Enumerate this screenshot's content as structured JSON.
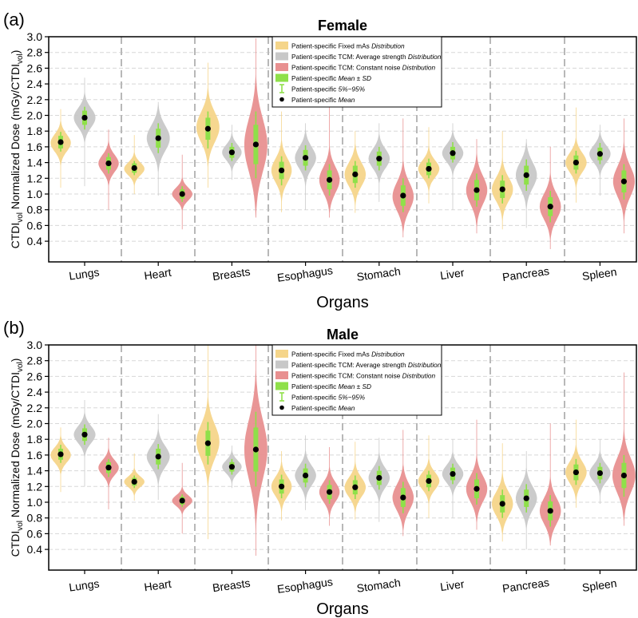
{
  "chart_data": [
    {
      "type": "violin",
      "panel_label": "(a)",
      "title": "Female",
      "xlabel": "Organs",
      "ylabel": {
        "prefix": "CTDI",
        "sub": "vol",
        "mid": " Normalized Dose (mGy/CTDI",
        "sub2": "vol",
        "suffix": ")"
      },
      "ylim": [
        0.3,
        3.0
      ],
      "yticks": [
        "0.4",
        "0.6",
        "0.8",
        "1.0",
        "1.2",
        "1.4",
        "1.6",
        "1.8",
        "2.0",
        "2.2",
        "2.4",
        "2.6",
        "2.8",
        "3.0"
      ],
      "grid": "horizontal-dashed",
      "legend_position": "top-right",
      "categories": [
        "Lungs",
        "Heart",
        "Breasts",
        "Esophagus",
        "Stomach",
        "Liver",
        "Pancreas",
        "Spleen"
      ],
      "series": [
        {
          "name": "Patient-specific Fixed mAs Distribution",
          "color": "#f5d58a",
          "values": [
            {
              "mean": 1.66,
              "sd": 0.08,
              "p5": 1.54,
              "p95": 1.79,
              "min": 1.08,
              "max": 2.08,
              "mode": 1.65,
              "width": 0.75
            },
            {
              "mean": 1.33,
              "sd": 0.06,
              "p5": 1.24,
              "p95": 1.42,
              "min": 1.0,
              "max": 1.75,
              "mode": 1.32,
              "width": 0.75
            },
            {
              "mean": 1.83,
              "sd": 0.14,
              "p5": 1.58,
              "p95": 2.05,
              "min": 1.08,
              "max": 2.67,
              "mode": 1.85,
              "width": 0.85
            },
            {
              "mean": 1.3,
              "sd": 0.11,
              "p5": 1.11,
              "p95": 1.48,
              "min": 0.77,
              "max": 2.05,
              "mode": 1.3,
              "width": 0.75
            },
            {
              "mean": 1.25,
              "sd": 0.11,
              "p5": 1.08,
              "p95": 1.42,
              "min": 0.76,
              "max": 1.8,
              "mode": 1.25,
              "width": 0.78
            },
            {
              "mean": 1.32,
              "sd": 0.08,
              "p5": 1.2,
              "p95": 1.45,
              "min": 0.88,
              "max": 1.85,
              "mode": 1.32,
              "width": 0.78
            },
            {
              "mean": 1.06,
              "sd": 0.11,
              "p5": 0.88,
              "p95": 1.24,
              "min": 0.55,
              "max": 1.8,
              "mode": 1.06,
              "width": 0.78
            },
            {
              "mean": 1.4,
              "sd": 0.09,
              "p5": 1.26,
              "p95": 1.55,
              "min": 0.89,
              "max": 2.1,
              "mode": 1.4,
              "width": 0.78
            }
          ]
        },
        {
          "name": "Patient-specific TCM: Average strength Distribution",
          "color": "#c8c8c8",
          "values": [
            {
              "mean": 1.97,
              "sd": 0.09,
              "p5": 1.82,
              "p95": 2.11,
              "min": 1.1,
              "max": 2.48,
              "mode": 1.97,
              "width": 0.8
            },
            {
              "mean": 1.71,
              "sd": 0.12,
              "p5": 1.52,
              "p95": 1.9,
              "min": 0.98,
              "max": 2.17,
              "mode": 1.71,
              "width": 0.85
            },
            {
              "mean": 1.53,
              "sd": 0.07,
              "p5": 1.42,
              "p95": 1.65,
              "min": 1.18,
              "max": 1.88,
              "mode": 1.53,
              "width": 0.72
            },
            {
              "mean": 1.46,
              "sd": 0.1,
              "p5": 1.3,
              "p95": 1.62,
              "min": 0.8,
              "max": 1.9,
              "mode": 1.46,
              "width": 0.78
            },
            {
              "mean": 1.45,
              "sd": 0.09,
              "p5": 1.3,
              "p95": 1.6,
              "min": 0.9,
              "max": 1.9,
              "mode": 1.45,
              "width": 0.78
            },
            {
              "mean": 1.52,
              "sd": 0.08,
              "p5": 1.4,
              "p95": 1.66,
              "min": 0.8,
              "max": 1.9,
              "mode": 1.52,
              "width": 0.78
            },
            {
              "mean": 1.24,
              "sd": 0.12,
              "p5": 1.04,
              "p95": 1.44,
              "min": 0.57,
              "max": 1.7,
              "mode": 1.24,
              "width": 0.78
            },
            {
              "mean": 1.51,
              "sd": 0.08,
              "p5": 1.38,
              "p95": 1.65,
              "min": 0.98,
              "max": 1.88,
              "mode": 1.51,
              "width": 0.78
            }
          ]
        },
        {
          "name": "Patient-specific TCM: Constant noise Distribution",
          "color": "#e89090",
          "values": [
            {
              "mean": 1.39,
              "sd": 0.08,
              "p5": 1.26,
              "p95": 1.52,
              "min": 0.8,
              "max": 1.82,
              "mode": 1.39,
              "width": 0.75
            },
            {
              "mean": 1.0,
              "sd": 0.06,
              "p5": 0.9,
              "p95": 1.1,
              "min": 0.55,
              "max": 1.5,
              "mode": 1.0,
              "width": 0.75
            },
            {
              "mean": 1.63,
              "sd": 0.25,
              "p5": 1.2,
              "p95": 2.05,
              "min": 0.7,
              "max": 2.98,
              "mode": 1.62,
              "width": 0.85
            },
            {
              "mean": 1.18,
              "sd": 0.12,
              "p5": 0.98,
              "p95": 1.38,
              "min": 0.7,
              "max": 2.3,
              "mode": 1.18,
              "width": 0.75
            },
            {
              "mean": 0.98,
              "sd": 0.13,
              "p5": 0.77,
              "p95": 1.2,
              "min": 0.45,
              "max": 1.96,
              "mode": 0.97,
              "width": 0.78
            },
            {
              "mean": 1.05,
              "sd": 0.13,
              "p5": 0.84,
              "p95": 1.26,
              "min": 0.5,
              "max": 1.7,
              "mode": 1.05,
              "width": 0.78
            },
            {
              "mean": 0.84,
              "sd": 0.12,
              "p5": 0.64,
              "p95": 1.04,
              "min": 0.3,
              "max": 1.6,
              "mode": 0.84,
              "width": 0.78
            },
            {
              "mean": 1.16,
              "sd": 0.14,
              "p5": 0.93,
              "p95": 1.38,
              "min": 0.5,
              "max": 1.96,
              "mode": 1.16,
              "width": 0.8
            }
          ]
        }
      ]
    },
    {
      "type": "violin",
      "panel_label": "(b)",
      "title": "Male",
      "xlabel": "Organs",
      "ylabel": {
        "prefix": "CTDI",
        "sub": "vol",
        "mid": " Normalized Dose (mGy/CTDI",
        "sub2": "vol",
        "suffix": ")"
      },
      "ylim": [
        0.3,
        3.0
      ],
      "yticks": [
        "0.4",
        "0.6",
        "0.8",
        "1.0",
        "1.2",
        "1.4",
        "1.6",
        "1.8",
        "2.0",
        "2.2",
        "2.4",
        "2.6",
        "2.8",
        "3.0"
      ],
      "grid": "horizontal-dashed",
      "legend_position": "top-right",
      "categories": [
        "Lungs",
        "Heart",
        "Breasts",
        "Esophagus",
        "Stomach",
        "Liver",
        "Pancreas",
        "Spleen"
      ],
      "series": [
        {
          "name": "Patient-specific Fixed mAs Distribution",
          "color": "#f5d58a",
          "values": [
            {
              "mean": 1.61,
              "sd": 0.07,
              "p5": 1.5,
              "p95": 1.73,
              "min": 1.13,
              "max": 1.95,
              "mode": 1.6,
              "width": 0.75
            },
            {
              "mean": 1.26,
              "sd": 0.05,
              "p5": 1.18,
              "p95": 1.34,
              "min": 1.02,
              "max": 1.62,
              "mode": 1.26,
              "width": 0.75
            },
            {
              "mean": 1.75,
              "sd": 0.16,
              "p5": 1.48,
              "p95": 2.02,
              "min": 0.53,
              "max": 3.0,
              "mode": 1.77,
              "width": 0.85
            },
            {
              "mean": 1.2,
              "sd": 0.09,
              "p5": 1.05,
              "p95": 1.35,
              "min": 0.77,
              "max": 1.65,
              "mode": 1.2,
              "width": 0.75
            },
            {
              "mean": 1.19,
              "sd": 0.09,
              "p5": 1.04,
              "p95": 1.34,
              "min": 0.78,
              "max": 1.77,
              "mode": 1.19,
              "width": 0.78
            },
            {
              "mean": 1.27,
              "sd": 0.08,
              "p5": 1.14,
              "p95": 1.4,
              "min": 0.8,
              "max": 1.85,
              "mode": 1.27,
              "width": 0.78
            },
            {
              "mean": 0.98,
              "sd": 0.11,
              "p5": 0.8,
              "p95": 1.16,
              "min": 0.5,
              "max": 1.75,
              "mode": 0.98,
              "width": 0.78
            },
            {
              "mean": 1.38,
              "sd": 0.1,
              "p5": 1.22,
              "p95": 1.55,
              "min": 0.93,
              "max": 2.05,
              "mode": 1.38,
              "width": 0.78
            }
          ]
        },
        {
          "name": "Patient-specific TCM: Average strength Distribution",
          "color": "#c8c8c8",
          "values": [
            {
              "mean": 1.86,
              "sd": 0.08,
              "p5": 1.73,
              "p95": 1.99,
              "min": 1.2,
              "max": 2.3,
              "mode": 1.86,
              "width": 0.8
            },
            {
              "mean": 1.58,
              "sd": 0.1,
              "p5": 1.42,
              "p95": 1.74,
              "min": 1.03,
              "max": 2.12,
              "mode": 1.58,
              "width": 0.85
            },
            {
              "mean": 1.45,
              "sd": 0.06,
              "p5": 1.35,
              "p95": 1.55,
              "min": 1.18,
              "max": 1.72,
              "mode": 1.45,
              "width": 0.72
            },
            {
              "mean": 1.34,
              "sd": 0.09,
              "p5": 1.19,
              "p95": 1.49,
              "min": 0.9,
              "max": 1.85,
              "mode": 1.34,
              "width": 0.78
            },
            {
              "mean": 1.31,
              "sd": 0.09,
              "p5": 1.16,
              "p95": 1.46,
              "min": 0.75,
              "max": 1.82,
              "mode": 1.31,
              "width": 0.78
            },
            {
              "mean": 1.36,
              "sd": 0.08,
              "p5": 1.23,
              "p95": 1.49,
              "min": 0.8,
              "max": 1.8,
              "mode": 1.36,
              "width": 0.78
            },
            {
              "mean": 1.05,
              "sd": 0.11,
              "p5": 0.87,
              "p95": 1.23,
              "min": 0.4,
              "max": 1.65,
              "mode": 1.05,
              "width": 0.78
            },
            {
              "mean": 1.37,
              "sd": 0.08,
              "p5": 1.24,
              "p95": 1.5,
              "min": 0.98,
              "max": 1.8,
              "mode": 1.37,
              "width": 0.78
            }
          ]
        },
        {
          "name": "Patient-specific TCM: Constant noise Distribution",
          "color": "#e89090",
          "values": [
            {
              "mean": 1.44,
              "sd": 0.07,
              "p5": 1.32,
              "p95": 1.55,
              "min": 0.91,
              "max": 1.82,
              "mode": 1.44,
              "width": 0.75
            },
            {
              "mean": 1.02,
              "sd": 0.05,
              "p5": 0.94,
              "p95": 1.1,
              "min": 0.6,
              "max": 1.5,
              "mode": 1.02,
              "width": 0.75
            },
            {
              "mean": 1.67,
              "sd": 0.28,
              "p5": 1.2,
              "p95": 2.15,
              "min": 0.32,
              "max": 3.0,
              "mode": 1.67,
              "width": 0.85
            },
            {
              "mean": 1.13,
              "sd": 0.09,
              "p5": 0.98,
              "p95": 1.28,
              "min": 0.7,
              "max": 1.7,
              "mode": 1.13,
              "width": 0.75
            },
            {
              "mean": 1.06,
              "sd": 0.12,
              "p5": 0.86,
              "p95": 1.26,
              "min": 0.57,
              "max": 1.92,
              "mode": 1.06,
              "width": 0.78
            },
            {
              "mean": 1.17,
              "sd": 0.12,
              "p5": 0.97,
              "p95": 1.37,
              "min": 0.65,
              "max": 2.05,
              "mode": 1.17,
              "width": 0.78
            },
            {
              "mean": 0.89,
              "sd": 0.12,
              "p5": 0.69,
              "p95": 1.09,
              "min": 0.45,
              "max": 2.0,
              "mode": 0.89,
              "width": 0.78
            },
            {
              "mean": 1.34,
              "sd": 0.16,
              "p5": 1.07,
              "p95": 1.6,
              "min": 0.7,
              "max": 2.65,
              "mode": 1.34,
              "width": 0.85
            }
          ]
        }
      ]
    }
  ],
  "legend": {
    "items": [
      {
        "kind": "patch",
        "color": "#f5d58a",
        "label": "Patient-specific Fixed mAs ",
        "label_italic": "Distribution"
      },
      {
        "kind": "patch",
        "color": "#c8c8c8",
        "label": "Patient-specific TCM: Average strength ",
        "label_italic": "Distribution"
      },
      {
        "kind": "patch",
        "color": "#e89090",
        "label": "Patient-specific TCM: Constant noise ",
        "label_italic": "Distribution"
      },
      {
        "kind": "patch",
        "color": "#8fe04a",
        "label": "Patient-specific ",
        "label_italic": "Mean ± SD"
      },
      {
        "kind": "whisker",
        "color": "#8fe04a",
        "label": "Patient-specific ",
        "label_italic": "5%~95%"
      },
      {
        "kind": "dot",
        "color": "#000000",
        "label": "Patient-specific ",
        "label_italic": "Mean"
      }
    ]
  },
  "style": {
    "sd_bar_color": "#8fe04a",
    "whisker_color": "#8fe04a",
    "mean_dot_color": "#000000",
    "divider_color": "#b8b8b8",
    "grid_color": "#d8d8d8"
  }
}
